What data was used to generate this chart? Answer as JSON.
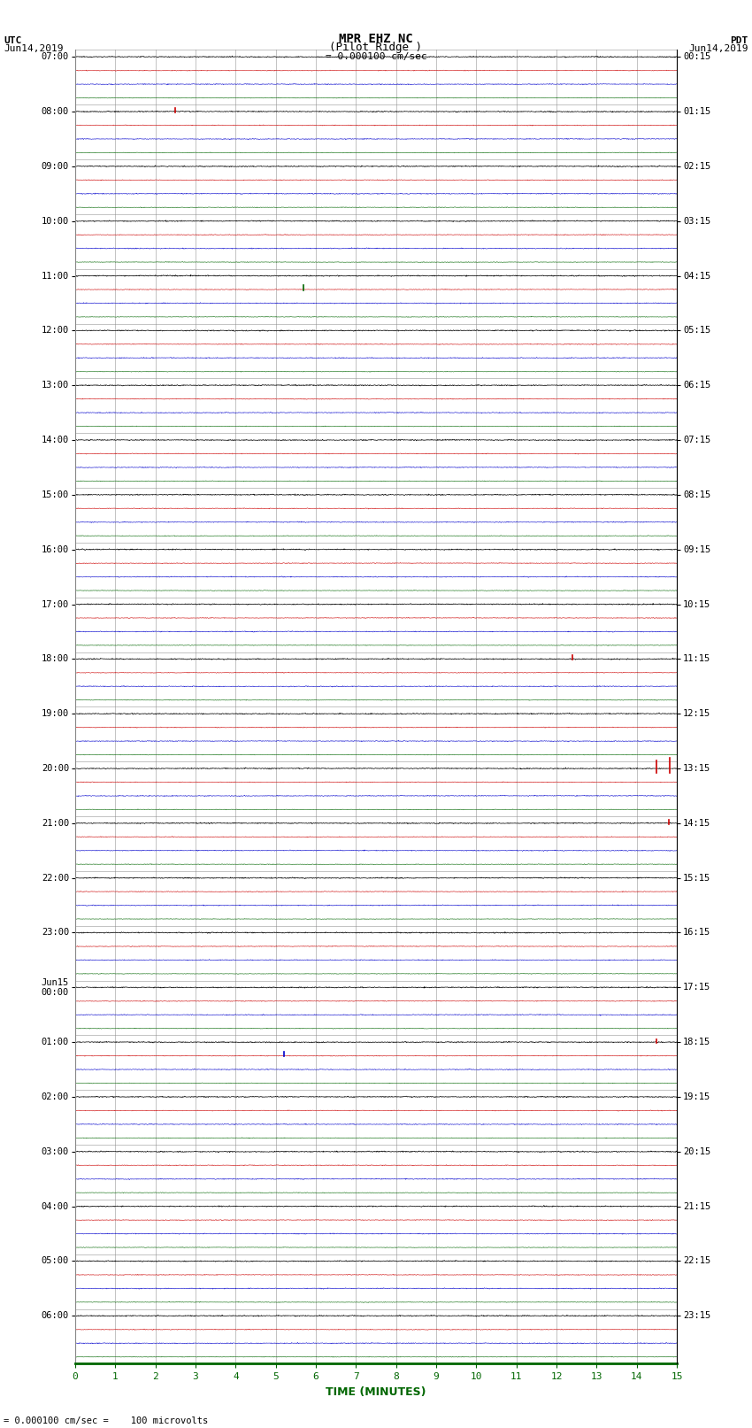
{
  "title_line1": "MPR EHZ NC",
  "title_line2": "(Pilot Ridge )",
  "scale_text": "= 0.000100 cm/sec",
  "footer_text": "= 0.000100 cm/sec =    100 microvolts",
  "left_label_top": "UTC",
  "left_label_date": "Jun14,2019",
  "right_label_top": "PDT",
  "right_label_date": "Jun14,2019",
  "xlabel": "TIME (MINUTES)",
  "bg_color": "#ffffff",
  "trace_colors": [
    "#000000",
    "#cc0000",
    "#0000cc",
    "#006600"
  ],
  "n_rows": 24,
  "traces_per_row": 4,
  "x_min": 0,
  "x_max": 15,
  "noise_amplitude_black": 0.018,
  "noise_amplitude_red": 0.012,
  "noise_amplitude_blue": 0.015,
  "noise_amplitude_green": 0.01,
  "grid_color": "#888888",
  "left_times_utc": [
    "07:00",
    "08:00",
    "09:00",
    "10:00",
    "11:00",
    "12:00",
    "13:00",
    "14:00",
    "15:00",
    "16:00",
    "17:00",
    "18:00",
    "19:00",
    "20:00",
    "21:00",
    "22:00",
    "23:00",
    "Jun15\n00:00",
    "01:00",
    "02:00",
    "03:00",
    "04:00",
    "05:00",
    "06:00"
  ],
  "right_times_pdt": [
    "00:15",
    "01:15",
    "02:15",
    "03:15",
    "04:15",
    "05:15",
    "06:15",
    "07:15",
    "08:15",
    "09:15",
    "10:15",
    "11:15",
    "12:15",
    "13:15",
    "14:15",
    "15:15",
    "16:15",
    "17:15",
    "18:15",
    "19:15",
    "20:15",
    "21:15",
    "22:15",
    "23:15"
  ],
  "spike_events": [
    {
      "row": 1,
      "trace": 0,
      "x": 2.5,
      "amp_up": 0.25,
      "amp_dn": 0.05,
      "color": "#cc0000"
    },
    {
      "row": 4,
      "trace": 1,
      "x": 5.7,
      "amp_up": 0.35,
      "amp_dn": 0.05,
      "color": "#006600"
    },
    {
      "row": 11,
      "trace": 0,
      "x": 12.4,
      "amp_up": 0.28,
      "amp_dn": 0.05,
      "color": "#cc0000"
    },
    {
      "row": 13,
      "trace": 0,
      "x": 14.5,
      "amp_up": 0.55,
      "amp_dn": 0.3,
      "color": "#cc0000"
    },
    {
      "row": 13,
      "trace": 0,
      "x": 14.82,
      "amp_up": 0.8,
      "amp_dn": 0.35,
      "color": "#cc0000"
    },
    {
      "row": 14,
      "trace": 0,
      "x": 14.8,
      "amp_up": 0.22,
      "amp_dn": 0.05,
      "color": "#cc0000"
    },
    {
      "row": 18,
      "trace": 1,
      "x": 5.2,
      "amp_up": 0.28,
      "amp_dn": 0.05,
      "color": "#0000cc"
    },
    {
      "row": 18,
      "trace": 0,
      "x": 14.5,
      "amp_up": 0.22,
      "amp_dn": 0.05,
      "color": "#cc0000"
    }
  ]
}
